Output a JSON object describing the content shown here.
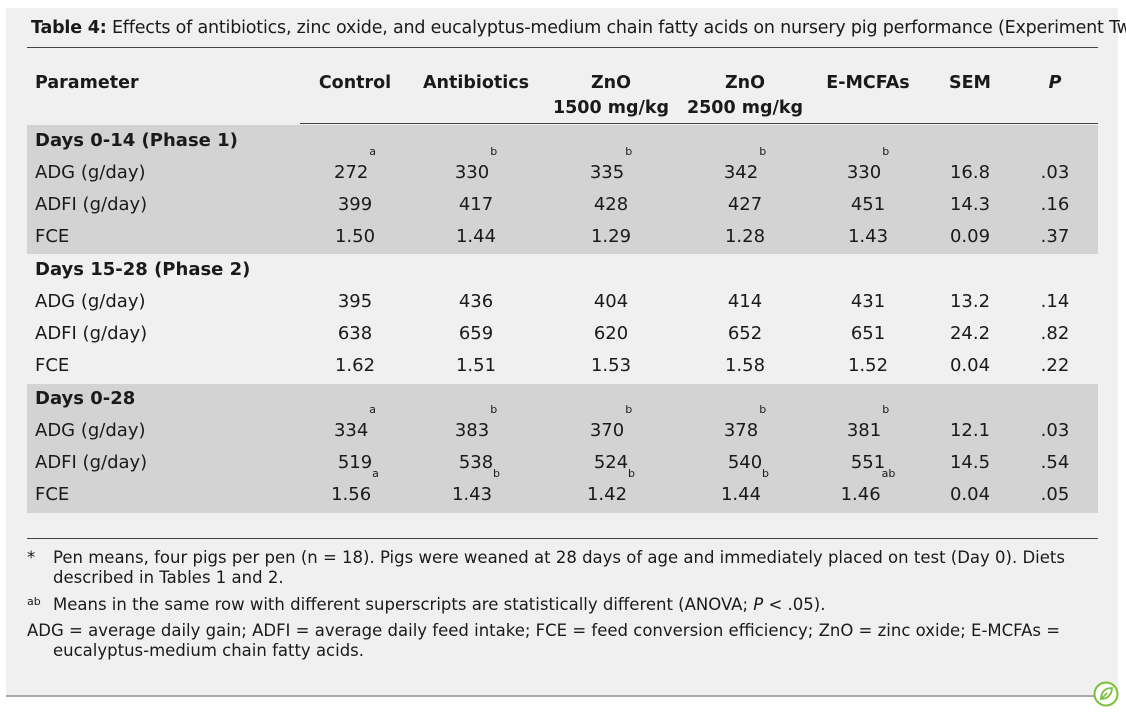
{
  "caption": {
    "label": "Table 4:",
    "text": "Effects of antibiotics, zinc oxide, and eucalyptus-medium chain fatty acids on nursery pig performance (Experiment Two)*"
  },
  "columns": {
    "parameter": "Parameter",
    "control": "Control",
    "antibiotics": "Antibiotics",
    "zno1500_line1": "ZnO",
    "zno1500_line2": "1500 mg/kg",
    "zno2500_line1": "ZnO",
    "zno2500_line2": "2500 mg/kg",
    "emcfa": "E-MCFAs",
    "sem": "SEM",
    "p": "P"
  },
  "sections": [
    {
      "title": "Days 0-14 (Phase 1)",
      "rows": [
        {
          "label": "ADG (g/day)",
          "cells": [
            [
              "272",
              "a"
            ],
            [
              "330",
              "b"
            ],
            [
              "335",
              "b"
            ],
            [
              "342",
              "b"
            ],
            [
              "330",
              "b"
            ]
          ],
          "sem": "16.8",
          "p": ".03"
        },
        {
          "label": "ADFI (g/day)",
          "cells": [
            [
              "399",
              ""
            ],
            [
              "417",
              ""
            ],
            [
              "428",
              ""
            ],
            [
              "427",
              ""
            ],
            [
              "451",
              ""
            ]
          ],
          "sem": "14.3",
          "p": ".16"
        },
        {
          "label": "FCE",
          "cells": [
            [
              "1.50",
              ""
            ],
            [
              "1.44",
              ""
            ],
            [
              "1.29",
              ""
            ],
            [
              "1.28",
              ""
            ],
            [
              "1.43",
              ""
            ]
          ],
          "sem": "0.09",
          "p": ".37"
        }
      ]
    },
    {
      "title": "Days 15-28 (Phase 2)",
      "rows": [
        {
          "label": "ADG (g/day)",
          "cells": [
            [
              "395",
              ""
            ],
            [
              "436",
              ""
            ],
            [
              "404",
              ""
            ],
            [
              "414",
              ""
            ],
            [
              "431",
              ""
            ]
          ],
          "sem": "13.2",
          "p": ".14"
        },
        {
          "label": "ADFI (g/day)",
          "cells": [
            [
              "638",
              ""
            ],
            [
              "659",
              ""
            ],
            [
              "620",
              ""
            ],
            [
              "652",
              ""
            ],
            [
              "651",
              ""
            ]
          ],
          "sem": "24.2",
          "p": ".82"
        },
        {
          "label": "FCE",
          "cells": [
            [
              "1.62",
              ""
            ],
            [
              "1.51",
              ""
            ],
            [
              "1.53",
              ""
            ],
            [
              "1.58",
              ""
            ],
            [
              "1.52",
              ""
            ]
          ],
          "sem": "0.04",
          "p": ".22"
        }
      ]
    },
    {
      "title": "Days 0-28",
      "rows": [
        {
          "label": "ADG (g/day)",
          "cells": [
            [
              "334",
              "a"
            ],
            [
              "383",
              "b"
            ],
            [
              "370",
              "b"
            ],
            [
              "378",
              "b"
            ],
            [
              "381",
              "b"
            ]
          ],
          "sem": "12.1",
          "p": ".03"
        },
        {
          "label": "ADFI (g/day)",
          "cells": [
            [
              "519",
              ""
            ],
            [
              "538",
              ""
            ],
            [
              "524",
              ""
            ],
            [
              "540",
              ""
            ],
            [
              "551",
              ""
            ]
          ],
          "sem": "14.5",
          "p": ".54"
        },
        {
          "label": "FCE",
          "cells": [
            [
              "1.56",
              "a"
            ],
            [
              "1.43",
              "b"
            ],
            [
              "1.42",
              "b"
            ],
            [
              "1.44",
              "b"
            ],
            [
              "1.46",
              "ab"
            ]
          ],
          "sem": "0.04",
          "p": ".05"
        }
      ]
    }
  ],
  "footnotes": {
    "star_mark": "*",
    "star_text": "Pen means, four pigs per pen (n = 18). Pigs were weaned at 28 days of age and immediately placed on test (Day 0). Diets described in Tables 1 and 2.",
    "ab_mark": "ab",
    "ab_text_before": "Means in the same row with different superscripts are statistically different (ANOVA; ",
    "ab_text_p": "P",
    "ab_text_after": " < .05).",
    "abbrev": "ADG = average daily gain; ADFI = average daily feed intake; FCE = feed conversion efficiency; ZnO = zinc oxide; E-MCFAs = eucalyptus-medium chain fatty acids."
  },
  "logo_icon": "leaf-circle-icon",
  "colors": {
    "shaded_band": "#d3d3d3",
    "panel": "#f0f0f0",
    "logo": "#7cbf3a"
  }
}
